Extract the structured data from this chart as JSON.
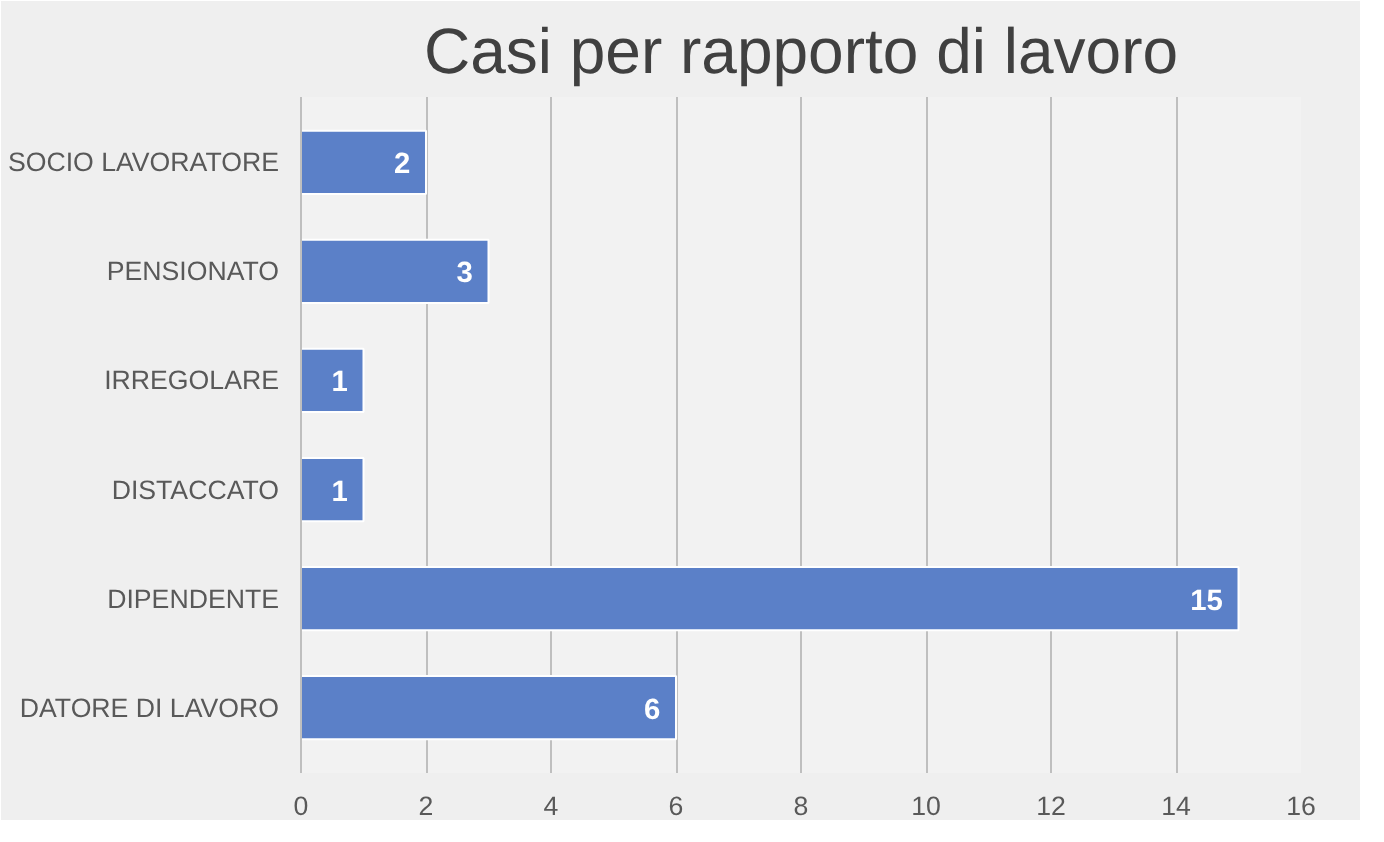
{
  "chart_data": {
    "type": "bar",
    "orientation": "horizontal",
    "title": "Casi per rapporto di lavoro",
    "categories": [
      "SOCIO LAVORATORE",
      "PENSIONATO",
      "IRREGOLARE",
      "DISTACCATO",
      "DIPENDENTE",
      "DATORE DI LAVORO"
    ],
    "values": [
      2,
      3,
      1,
      1,
      15,
      6
    ],
    "color": "#5b80c8",
    "xlim": [
      0,
      16
    ],
    "xticks": [
      0,
      2,
      4,
      6,
      8,
      10,
      12,
      14,
      16
    ],
    "grid": "x",
    "data_labels": true
  }
}
